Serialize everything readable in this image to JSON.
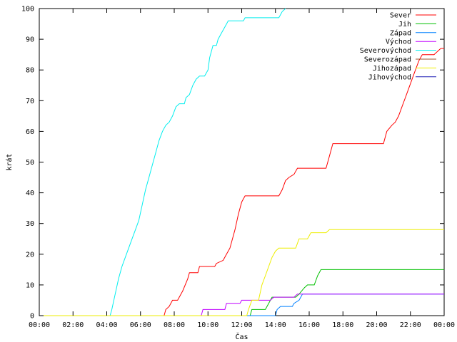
{
  "chart_data": {
    "type": "line",
    "title": "",
    "xlabel": "Čas",
    "ylabel": "krát",
    "xlim": [
      0,
      24
    ],
    "ylim": [
      0,
      100
    ],
    "xtick_labels": [
      "00:00",
      "02:00",
      "04:00",
      "06:00",
      "08:00",
      "10:00",
      "12:00",
      "14:00",
      "16:00",
      "18:00",
      "20:00",
      "22:00",
      "00:00"
    ],
    "ytick_labels": [
      "0",
      "10",
      "20",
      "30",
      "40",
      "50",
      "60",
      "70",
      "80",
      "90",
      "100"
    ],
    "grid": false,
    "legend_position": "top-right",
    "series": [
      {
        "name": "Sever",
        "color": "#ff0000",
        "points": [
          [
            0,
            0
          ],
          [
            7.4,
            0
          ],
          [
            7.5,
            2
          ],
          [
            7.7,
            3
          ],
          [
            7.9,
            5
          ],
          [
            8.2,
            5
          ],
          [
            8.5,
            8
          ],
          [
            8.8,
            12
          ],
          [
            8.9,
            14
          ],
          [
            9.4,
            14
          ],
          [
            9.5,
            16
          ],
          [
            10.4,
            16
          ],
          [
            10.5,
            17
          ],
          [
            10.9,
            18
          ],
          [
            11.1,
            20
          ],
          [
            11.3,
            22
          ],
          [
            11.6,
            28
          ],
          [
            11.8,
            33
          ],
          [
            12.0,
            37
          ],
          [
            12.2,
            39
          ],
          [
            14.2,
            39
          ],
          [
            14.4,
            41
          ],
          [
            14.6,
            44
          ],
          [
            14.8,
            45
          ],
          [
            15.1,
            46
          ],
          [
            15.3,
            48
          ],
          [
            17.0,
            48
          ],
          [
            17.2,
            52
          ],
          [
            17.4,
            56
          ],
          [
            20.4,
            56
          ],
          [
            20.6,
            60
          ],
          [
            20.9,
            62
          ],
          [
            21.1,
            63
          ],
          [
            21.3,
            65
          ],
          [
            21.5,
            68
          ],
          [
            21.7,
            71
          ],
          [
            21.9,
            74
          ],
          [
            22.1,
            77
          ],
          [
            22.3,
            80
          ],
          [
            22.5,
            83
          ],
          [
            22.7,
            85
          ],
          [
            23.4,
            85
          ],
          [
            23.6,
            86
          ],
          [
            23.8,
            87
          ],
          [
            24,
            87
          ]
        ]
      },
      {
        "name": "Jih",
        "color": "#00c000",
        "points": [
          [
            0,
            0
          ],
          [
            12.5,
            0
          ],
          [
            12.6,
            2
          ],
          [
            13.4,
            2
          ],
          [
            13.6,
            4
          ],
          [
            13.8,
            6
          ],
          [
            15.2,
            6
          ],
          [
            15.4,
            7
          ],
          [
            15.7,
            9
          ],
          [
            15.9,
            10
          ],
          [
            16.3,
            10
          ],
          [
            16.5,
            13
          ],
          [
            16.7,
            15
          ],
          [
            24,
            15
          ]
        ]
      },
      {
        "name": "Západ",
        "color": "#0080ff",
        "points": [
          [
            0,
            0
          ],
          [
            14.0,
            0
          ],
          [
            14.1,
            2
          ],
          [
            14.3,
            3
          ],
          [
            15.0,
            3
          ],
          [
            15.1,
            4
          ],
          [
            15.4,
            5
          ],
          [
            15.6,
            7
          ],
          [
            24,
            7
          ]
        ]
      },
      {
        "name": "Východ",
        "color": "#c000ff",
        "points": [
          [
            0,
            0
          ],
          [
            9.6,
            0
          ],
          [
            9.7,
            2
          ],
          [
            11.0,
            2
          ],
          [
            11.1,
            4
          ],
          [
            11.9,
            4
          ],
          [
            12.0,
            5
          ],
          [
            13.7,
            5
          ],
          [
            13.9,
            6
          ],
          [
            15.1,
            6
          ],
          [
            15.3,
            7
          ],
          [
            24,
            7
          ]
        ]
      },
      {
        "name": "Severovýchod",
        "color": "#00eeee",
        "points": [
          [
            0,
            0
          ],
          [
            4.2,
            0
          ],
          [
            4.3,
            2
          ],
          [
            4.5,
            7
          ],
          [
            4.7,
            12
          ],
          [
            4.9,
            16
          ],
          [
            5.1,
            19
          ],
          [
            5.3,
            22
          ],
          [
            5.5,
            25
          ],
          [
            5.7,
            28
          ],
          [
            5.9,
            31
          ],
          [
            6.1,
            36
          ],
          [
            6.3,
            41
          ],
          [
            6.5,
            45
          ],
          [
            6.7,
            49
          ],
          [
            6.9,
            53
          ],
          [
            7.1,
            57
          ],
          [
            7.3,
            60
          ],
          [
            7.5,
            62
          ],
          [
            7.7,
            63
          ],
          [
            7.9,
            65
          ],
          [
            8.1,
            68
          ],
          [
            8.3,
            69
          ],
          [
            8.6,
            69
          ],
          [
            8.7,
            71
          ],
          [
            8.9,
            72
          ],
          [
            9.1,
            75
          ],
          [
            9.3,
            77
          ],
          [
            9.5,
            78
          ],
          [
            9.8,
            78
          ],
          [
            10.0,
            80
          ],
          [
            10.1,
            84
          ],
          [
            10.3,
            88
          ],
          [
            10.5,
            88
          ],
          [
            10.6,
            90
          ],
          [
            10.8,
            92
          ],
          [
            11.0,
            94
          ],
          [
            11.2,
            96
          ],
          [
            12.1,
            96
          ],
          [
            12.2,
            97
          ],
          [
            14.2,
            97
          ],
          [
            14.4,
            99
          ],
          [
            14.6,
            100
          ]
        ]
      },
      {
        "name": "Severozápad",
        "color": "#a0522d",
        "points": []
      },
      {
        "name": "Jihozápad",
        "color": "#eeee00",
        "points": [
          [
            0,
            0
          ],
          [
            12.3,
            0
          ],
          [
            12.4,
            2
          ],
          [
            12.6,
            5
          ],
          [
            13.0,
            5
          ],
          [
            13.2,
            10
          ],
          [
            13.4,
            13
          ],
          [
            13.6,
            16
          ],
          [
            13.8,
            19
          ],
          [
            14.0,
            21
          ],
          [
            14.2,
            22
          ],
          [
            15.2,
            22
          ],
          [
            15.4,
            25
          ],
          [
            15.9,
            25
          ],
          [
            16.1,
            27
          ],
          [
            17.0,
            27
          ],
          [
            17.2,
            28
          ],
          [
            24,
            28
          ]
        ]
      },
      {
        "name": "Jihovýchod",
        "color": "#1a1ab4",
        "points": []
      }
    ]
  }
}
